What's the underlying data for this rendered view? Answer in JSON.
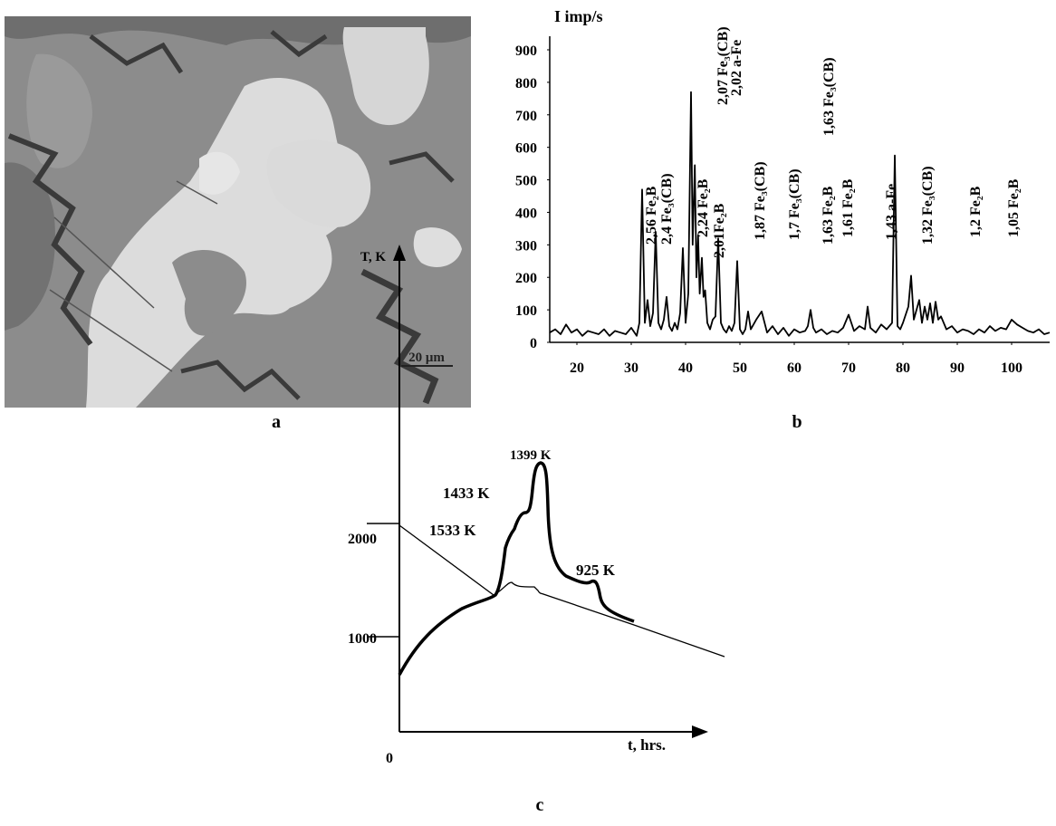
{
  "panel_a": {
    "label": "a",
    "scale_bar": "20 μm"
  },
  "chart_data": {
    "type": "line",
    "panel_label": "b",
    "y_label": "I imp/s",
    "color": "#000000",
    "xlim": [
      15,
      107
    ],
    "ylim": [
      0,
      900
    ],
    "xticks": [
      20,
      30,
      40,
      50,
      60,
      70,
      80,
      90,
      100
    ],
    "yticks": [
      0,
      100,
      200,
      300,
      400,
      500,
      600,
      700,
      800,
      900
    ],
    "x": [
      15,
      16,
      17,
      18,
      19,
      20,
      21,
      22,
      23,
      24,
      25,
      26,
      27,
      28,
      29,
      30,
      31,
      31.5,
      32,
      32.5,
      33,
      33.5,
      34,
      34.5,
      35,
      35.5,
      36,
      36.5,
      37,
      37.5,
      38,
      38.5,
      39,
      39.5,
      40,
      40.5,
      41,
      41.3,
      41.7,
      42,
      42.3,
      42.6,
      43,
      43.3,
      43.6,
      44,
      44.5,
      45,
      45.5,
      46,
      46.5,
      47,
      47.5,
      48,
      48.5,
      49,
      49.5,
      50,
      50.5,
      51,
      51.5,
      52,
      53,
      54,
      55,
      56,
      57,
      58,
      59,
      60,
      61,
      62,
      62.5,
      63,
      63.5,
      64,
      65,
      66,
      67,
      68,
      69,
      70,
      71,
      72,
      73,
      73.5,
      74,
      75,
      76,
      77,
      78,
      78.5,
      79,
      79.5,
      80,
      81,
      81.5,
      82,
      83,
      83.5,
      84,
      84.5,
      85,
      85.5,
      86,
      86.5,
      87,
      88,
      89,
      90,
      91,
      92,
      93,
      94,
      95,
      96,
      97,
      98,
      99,
      100,
      101,
      102,
      103,
      104,
      105,
      106,
      107
    ],
    "values": [
      30,
      40,
      25,
      55,
      30,
      40,
      20,
      35,
      30,
      25,
      40,
      20,
      35,
      30,
      25,
      45,
      20,
      60,
      470,
      60,
      130,
      50,
      90,
      340,
      60,
      40,
      70,
      140,
      50,
      35,
      60,
      40,
      90,
      290,
      60,
      150,
      770,
      300,
      545,
      200,
      330,
      150,
      260,
      140,
      160,
      60,
      40,
      70,
      80,
      320,
      60,
      40,
      30,
      50,
      35,
      60,
      250,
      40,
      25,
      40,
      95,
      40,
      70,
      95,
      30,
      50,
      25,
      45,
      20,
      40,
      30,
      35,
      50,
      100,
      45,
      30,
      40,
      25,
      35,
      30,
      45,
      85,
      35,
      50,
      40,
      110,
      45,
      30,
      55,
      40,
      60,
      575,
      50,
      40,
      60,
      110,
      205,
      70,
      130,
      60,
      110,
      70,
      120,
      60,
      125,
      70,
      80,
      40,
      50,
      30,
      40,
      35,
      25,
      40,
      30,
      50,
      35,
      45,
      40,
      70,
      55,
      45,
      35,
      30,
      40,
      25,
      30
    ],
    "annotations": [
      "2,56 Fe₂B",
      "2,4 Fe₃(CB)",
      "2,24 Fe₂B",
      "2,01Fe₂B",
      "2,07 Fe₃(CB)",
      "2,02 a-Fe",
      "1,87 Fe₃(CB)",
      "1,7 Fe₃(CB)",
      "1,63 Fe₂B",
      "1,63 Fe₃(CB)",
      "1,61 Fe₂B",
      "1,43 a-Fe",
      "1,32 Fe₃(CB)",
      "1,2 Fe₂B",
      "1,05 Fe₂B"
    ]
  },
  "panel_c": {
    "label": "c",
    "y_axis_label": "T, K",
    "x_axis_label": "t, hrs.",
    "tick_labels": [
      "2000",
      "1000",
      "0"
    ],
    "annotations": [
      "1399 K",
      "1433 K",
      "1533 K",
      "925 K"
    ]
  }
}
